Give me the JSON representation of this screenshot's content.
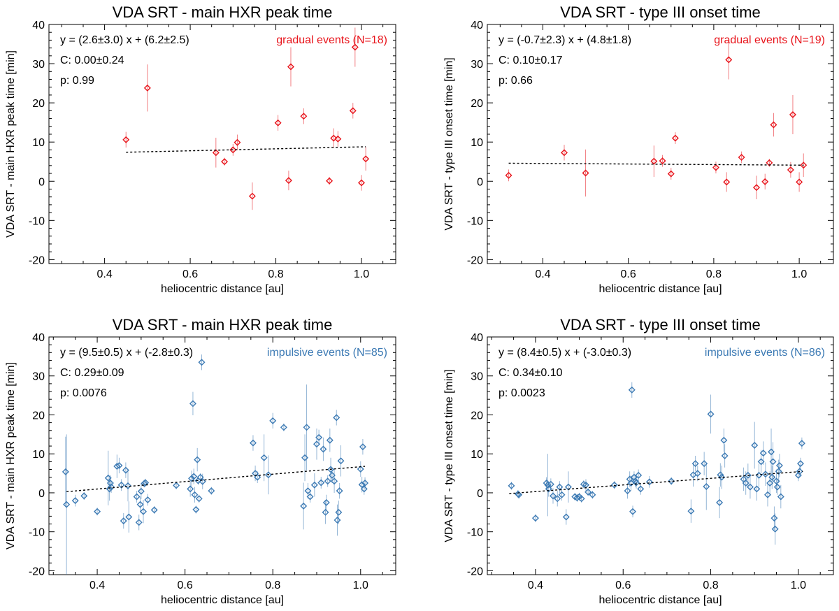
{
  "colors": {
    "gradual": "#e8141b",
    "impulsive": "#3c7ab4",
    "fit": "#000000"
  },
  "chart_data": [
    {
      "type": "scatter",
      "title": "VDA SRT - main HXR peak time",
      "xlabel": "heliocentric distance [au]",
      "ylabel": "VDA SRT - main HXR peak time [min]",
      "xlim": [
        0.27,
        1.08
      ],
      "ylim": [
        -21,
        40
      ],
      "xticks": [
        0.4,
        0.6,
        0.8,
        1.0
      ],
      "yticks": [
        -20,
        -10,
        0,
        10,
        20,
        30,
        40
      ],
      "xtick_labels": [
        "0.4",
        "0.6",
        "0.8",
        "1.0"
      ],
      "ytick_labels": [
        "-20",
        "-10",
        "0",
        "10",
        "20",
        "30",
        "40"
      ],
      "series_color": "gradual",
      "legend": "gradual events (N=18)",
      "fit_text": "y = (2.6±3.0) x + (6.2±2.5)",
      "corr_text": "C: 0.00±0.24",
      "p_text": "p: 0.99",
      "fit": {
        "x": [
          0.45,
          1.01
        ],
        "y": [
          7.4,
          8.8
        ]
      },
      "points": [
        {
          "x": 0.45,
          "y": 10.6,
          "e": 2.0
        },
        {
          "x": 0.5,
          "y": 23.8,
          "e": 6.0
        },
        {
          "x": 0.66,
          "y": 7.3,
          "e": 3.8
        },
        {
          "x": 0.68,
          "y": 5.0,
          "e": 1.0
        },
        {
          "x": 0.7,
          "y": 8.0,
          "e": 1.5
        },
        {
          "x": 0.71,
          "y": 9.9,
          "e": 2.0
        },
        {
          "x": 0.745,
          "y": -3.8,
          "e": 3.5
        },
        {
          "x": 0.805,
          "y": 14.9,
          "e": 2.0
        },
        {
          "x": 0.83,
          "y": 0.2,
          "e": 2.5
        },
        {
          "x": 0.835,
          "y": 29.2,
          "e": 5.0
        },
        {
          "x": 0.865,
          "y": 16.6,
          "e": 2.0
        },
        {
          "x": 0.925,
          "y": 0.1,
          "e": 1.0
        },
        {
          "x": 0.935,
          "y": 11.0,
          "e": 2.5
        },
        {
          "x": 0.945,
          "y": 10.8,
          "e": 2.0
        },
        {
          "x": 0.98,
          "y": 18.0,
          "e": 2.0
        },
        {
          "x": 0.985,
          "y": 34.2,
          "e": 5.0
        },
        {
          "x": 1.0,
          "y": -0.4,
          "e": 2.0
        },
        {
          "x": 1.01,
          "y": 5.7,
          "e": 3.0
        }
      ]
    },
    {
      "type": "scatter",
      "title": "VDA SRT - type III onset time",
      "xlabel": "heliocentric distance [au]",
      "ylabel": "VDA SRT - type III onset time [min]",
      "xlim": [
        0.27,
        1.08
      ],
      "ylim": [
        -21,
        40
      ],
      "xticks": [
        0.4,
        0.6,
        0.8,
        1.0
      ],
      "yticks": [
        -20,
        -10,
        0,
        10,
        20,
        30,
        40
      ],
      "xtick_labels": [
        "0.4",
        "0.6",
        "0.8",
        "1.0"
      ],
      "ytick_labels": [
        "-20",
        "-10",
        "0",
        "10",
        "20",
        "30",
        "40"
      ],
      "series_color": "gradual",
      "legend": "gradual events (N=19)",
      "fit_text": "y = (-0.7±2.3) x + (4.8±1.8)",
      "corr_text": "C: 0.10±0.17",
      "p_text": "p: 0.66",
      "fit": {
        "x": [
          0.32,
          1.01
        ],
        "y": [
          4.6,
          4.1
        ]
      },
      "points": [
        {
          "x": 0.32,
          "y": 1.5,
          "e": 1.5
        },
        {
          "x": 0.45,
          "y": 7.3,
          "e": 2.0
        },
        {
          "x": 0.5,
          "y": 2.1,
          "e": 6.0
        },
        {
          "x": 0.66,
          "y": 5.1,
          "e": 4.0
        },
        {
          "x": 0.68,
          "y": 5.2,
          "e": 1.5
        },
        {
          "x": 0.7,
          "y": 1.9,
          "e": 1.5
        },
        {
          "x": 0.71,
          "y": 11.0,
          "e": 1.5
        },
        {
          "x": 0.805,
          "y": 3.5,
          "e": 1.5
        },
        {
          "x": 0.83,
          "y": -0.2,
          "e": 2.5
        },
        {
          "x": 0.835,
          "y": 31.0,
          "e": 5.0
        },
        {
          "x": 0.865,
          "y": 6.1,
          "e": 1.5
        },
        {
          "x": 0.9,
          "y": -1.6,
          "e": 3.0
        },
        {
          "x": 0.92,
          "y": -0.1,
          "e": 2.0
        },
        {
          "x": 0.93,
          "y": 4.7,
          "e": 1.0
        },
        {
          "x": 0.94,
          "y": 14.4,
          "e": 3.0
        },
        {
          "x": 0.98,
          "y": 2.9,
          "e": 2.0
        },
        {
          "x": 0.985,
          "y": 17.0,
          "e": 5.0
        },
        {
          "x": 1.0,
          "y": -0.2,
          "e": 2.5
        },
        {
          "x": 1.01,
          "y": 4.1,
          "e": 3.0
        }
      ]
    },
    {
      "type": "scatter",
      "title": "VDA SRT - main HXR peak time",
      "xlabel": "heliocentric distance [au]",
      "ylabel": "VDA SRT - main HXR peak time [min]",
      "xlim": [
        0.29,
        1.08
      ],
      "ylim": [
        -21,
        40
      ],
      "xticks": [
        0.4,
        0.6,
        0.8,
        1.0
      ],
      "yticks": [
        -20,
        -10,
        0,
        10,
        20,
        30,
        40
      ],
      "xtick_labels": [
        "0.4",
        "0.6",
        "0.8",
        "1.0"
      ],
      "ytick_labels": [
        "-20",
        "-10",
        "0",
        "10",
        "20",
        "30",
        "40"
      ],
      "series_color": "impulsive",
      "legend": "impulsive events (N=85)",
      "fit_text": "y = (9.5±0.5) x + (-2.8±0.3)",
      "corr_text": "C: 0.29±0.09",
      "p_text": "p: 0.0076",
      "fit": {
        "x": [
          0.33,
          1.01
        ],
        "y": [
          0.3,
          6.8
        ]
      },
      "points": [
        {
          "x": 0.328,
          "y": 5.4,
          "e": 9.0
        },
        {
          "x": 0.33,
          "y": -3.0,
          "e": 18.0
        },
        {
          "x": 0.35,
          "y": -2.0,
          "e": 1.5
        },
        {
          "x": 0.37,
          "y": -0.8,
          "e": 1.0
        },
        {
          "x": 0.4,
          "y": -4.8,
          "e": 1.0
        },
        {
          "x": 0.425,
          "y": 3.8,
          "e": 7.0
        },
        {
          "x": 0.428,
          "y": 1.0,
          "e": 3.0
        },
        {
          "x": 0.43,
          "y": 2.5,
          "e": 2.0
        },
        {
          "x": 0.432,
          "y": 1.5,
          "e": 1.5
        },
        {
          "x": 0.445,
          "y": 6.8,
          "e": 3.0
        },
        {
          "x": 0.45,
          "y": 7.0,
          "e": 2.0
        },
        {
          "x": 0.455,
          "y": 2.0,
          "e": 1.5
        },
        {
          "x": 0.46,
          "y": -7.2,
          "e": 2.0
        },
        {
          "x": 0.465,
          "y": 5.8,
          "e": 2.0
        },
        {
          "x": 0.47,
          "y": 1.8,
          "e": 4.0
        },
        {
          "x": 0.472,
          "y": -6.2,
          "e": 4.0
        },
        {
          "x": 0.49,
          "y": -1.0,
          "e": 1.5
        },
        {
          "x": 0.495,
          "y": -7.6,
          "e": 2.0
        },
        {
          "x": 0.498,
          "y": -3.0,
          "e": 2.0
        },
        {
          "x": 0.5,
          "y": 0.4,
          "e": 2.0
        },
        {
          "x": 0.505,
          "y": -4.8,
          "e": 3.0
        },
        {
          "x": 0.507,
          "y": 2.4,
          "e": 1.0
        },
        {
          "x": 0.51,
          "y": 2.6,
          "e": 1.0
        },
        {
          "x": 0.515,
          "y": -1.8,
          "e": 1.5
        },
        {
          "x": 0.53,
          "y": -4.4,
          "e": 1.0
        },
        {
          "x": 0.58,
          "y": 1.9,
          "e": 1.0
        },
        {
          "x": 0.612,
          "y": 1.0,
          "e": 2.0
        },
        {
          "x": 0.615,
          "y": 3.7,
          "e": 2.0
        },
        {
          "x": 0.618,
          "y": 22.9,
          "e": 3.0
        },
        {
          "x": 0.62,
          "y": 4.2,
          "e": 2.0
        },
        {
          "x": 0.622,
          "y": -0.5,
          "e": 2.0
        },
        {
          "x": 0.625,
          "y": -4.3,
          "e": 1.0
        },
        {
          "x": 0.628,
          "y": 8.5,
          "e": 3.0
        },
        {
          "x": 0.63,
          "y": 3.1,
          "e": 1.0
        },
        {
          "x": 0.632,
          "y": -1.5,
          "e": 1.0
        },
        {
          "x": 0.635,
          "y": 4.0,
          "e": 1.0
        },
        {
          "x": 0.638,
          "y": 33.5,
          "e": 2.0
        },
        {
          "x": 0.64,
          "y": 2.9,
          "e": 2.0
        },
        {
          "x": 0.66,
          "y": 0.5,
          "e": 1.0
        },
        {
          "x": 0.755,
          "y": 12.8,
          "e": 2.0
        },
        {
          "x": 0.76,
          "y": 5.0,
          "e": 2.0
        },
        {
          "x": 0.765,
          "y": 4.0,
          "e": 1.5
        },
        {
          "x": 0.78,
          "y": 9.0,
          "e": 6.0
        },
        {
          "x": 0.79,
          "y": 4.6,
          "e": 5.0
        },
        {
          "x": 0.8,
          "y": 18.5,
          "e": 2.0
        },
        {
          "x": 0.825,
          "y": 16.8,
          "e": 1.0
        },
        {
          "x": 0.87,
          "y": -3.4,
          "e": 6.0
        },
        {
          "x": 0.873,
          "y": 9.0,
          "e": 6.0
        },
        {
          "x": 0.877,
          "y": 16.8,
          "e": 11.0
        },
        {
          "x": 0.88,
          "y": 0.5,
          "e": 2.0
        },
        {
          "x": 0.885,
          "y": -1.0,
          "e": 1.5
        },
        {
          "x": 0.895,
          "y": 2.0,
          "e": 3.0
        },
        {
          "x": 0.9,
          "y": 12.5,
          "e": 4.0
        },
        {
          "x": 0.905,
          "y": 14.2,
          "e": 2.0
        },
        {
          "x": 0.91,
          "y": 2.6,
          "e": 1.5
        },
        {
          "x": 0.915,
          "y": 11.2,
          "e": 3.0
        },
        {
          "x": 0.92,
          "y": -5.0,
          "e": 3.0
        },
        {
          "x": 0.922,
          "y": -2.5,
          "e": 2.0
        },
        {
          "x": 0.925,
          "y": 3.0,
          "e": 1.5
        },
        {
          "x": 0.93,
          "y": 13.5,
          "e": 3.0
        },
        {
          "x": 0.932,
          "y": 6.0,
          "e": 3.0
        },
        {
          "x": 0.935,
          "y": 4.5,
          "e": 2.0
        },
        {
          "x": 0.94,
          "y": 3.0,
          "e": 3.0
        },
        {
          "x": 0.945,
          "y": 19.3,
          "e": 2.0
        },
        {
          "x": 0.947,
          "y": -7.0,
          "e": 4.0
        },
        {
          "x": 0.95,
          "y": -5.0,
          "e": 3.0
        },
        {
          "x": 0.952,
          "y": 0.5,
          "e": 2.0
        },
        {
          "x": 0.955,
          "y": 8.2,
          "e": 4.0
        },
        {
          "x": 1.0,
          "y": 6.1,
          "e": 2.0
        },
        {
          "x": 1.003,
          "y": 2.1,
          "e": 2.0
        },
        {
          "x": 1.005,
          "y": 11.8,
          "e": 2.0
        },
        {
          "x": 1.008,
          "y": 1.0,
          "e": 1.5
        },
        {
          "x": 1.01,
          "y": 2.5,
          "e": 1.5
        }
      ]
    },
    {
      "type": "scatter",
      "title": "VDA SRT - type III onset time",
      "xlabel": "heliocentric distance [au]",
      "ylabel": "VDA SRT - type III onset time [min]",
      "xlim": [
        0.29,
        1.08
      ],
      "ylim": [
        -21,
        40
      ],
      "xticks": [
        0.4,
        0.6,
        0.8,
        1.0
      ],
      "yticks": [
        -20,
        -10,
        0,
        10,
        20,
        30,
        40
      ],
      "xtick_labels": [
        "0.4",
        "0.6",
        "0.8",
        "1.0"
      ],
      "ytick_labels": [
        "-20",
        "-10",
        "0",
        "10",
        "20",
        "30",
        "40"
      ],
      "series_color": "impulsive",
      "legend": "impulsive events (N=86)",
      "fit_text": "y = (8.4±0.5) x + (-3.0±0.3)",
      "corr_text": "C: 0.34±0.10",
      "p_text": "p: 0.0023",
      "fit": {
        "x": [
          0.34,
          1.01
        ],
        "y": [
          -0.2,
          5.5
        ]
      },
      "points": [
        {
          "x": 0.345,
          "y": 1.8,
          "e": 1.0
        },
        {
          "x": 0.36,
          "y": -0.3,
          "e": 1.0
        },
        {
          "x": 0.362,
          "y": -0.5,
          "e": 1.0
        },
        {
          "x": 0.4,
          "y": -6.5,
          "e": 1.0
        },
        {
          "x": 0.425,
          "y": 2.5,
          "e": 1.5
        },
        {
          "x": 0.428,
          "y": 2.0,
          "e": 8.0
        },
        {
          "x": 0.43,
          "y": 1.0,
          "e": 2.0
        },
        {
          "x": 0.435,
          "y": 2.2,
          "e": 1.5
        },
        {
          "x": 0.44,
          "y": -0.8,
          "e": 2.0
        },
        {
          "x": 0.45,
          "y": -1.5,
          "e": 2.0
        },
        {
          "x": 0.455,
          "y": 1.5,
          "e": 1.5
        },
        {
          "x": 0.46,
          "y": -0.5,
          "e": 1.5
        },
        {
          "x": 0.47,
          "y": -6.2,
          "e": 2.0
        },
        {
          "x": 0.475,
          "y": 1.5,
          "e": 4.0
        },
        {
          "x": 0.49,
          "y": -1.0,
          "e": 1.0
        },
        {
          "x": 0.495,
          "y": -1.3,
          "e": 1.0
        },
        {
          "x": 0.5,
          "y": -1.0,
          "e": 1.0
        },
        {
          "x": 0.505,
          "y": -1.5,
          "e": 1.0
        },
        {
          "x": 0.51,
          "y": 2.2,
          "e": 1.0
        },
        {
          "x": 0.515,
          "y": 2.0,
          "e": 1.5
        },
        {
          "x": 0.52,
          "y": 0.2,
          "e": 1.0
        },
        {
          "x": 0.53,
          "y": -0.5,
          "e": 1.0
        },
        {
          "x": 0.58,
          "y": 2.0,
          "e": 1.0
        },
        {
          "x": 0.61,
          "y": 0.5,
          "e": 2.0
        },
        {
          "x": 0.615,
          "y": 3.5,
          "e": 2.0
        },
        {
          "x": 0.618,
          "y": 2.5,
          "e": 2.0
        },
        {
          "x": 0.62,
          "y": 26.4,
          "e": 2.0
        },
        {
          "x": 0.622,
          "y": -4.8,
          "e": 1.5
        },
        {
          "x": 0.625,
          "y": 4.0,
          "e": 1.5
        },
        {
          "x": 0.628,
          "y": 3.0,
          "e": 1.5
        },
        {
          "x": 0.63,
          "y": 2.6,
          "e": 1.5
        },
        {
          "x": 0.635,
          "y": 4.5,
          "e": 1.5
        },
        {
          "x": 0.64,
          "y": 1.0,
          "e": 1.5
        },
        {
          "x": 0.66,
          "y": 2.8,
          "e": 1.5
        },
        {
          "x": 0.71,
          "y": 3.0,
          "e": 1.0
        },
        {
          "x": 0.755,
          "y": -4.7,
          "e": 3.0
        },
        {
          "x": 0.76,
          "y": 4.6,
          "e": 3.0
        },
        {
          "x": 0.765,
          "y": 7.5,
          "e": 2.0
        },
        {
          "x": 0.77,
          "y": 5.0,
          "e": 2.0
        },
        {
          "x": 0.785,
          "y": 7.5,
          "e": 3.0
        },
        {
          "x": 0.79,
          "y": 1.6,
          "e": 6.0
        },
        {
          "x": 0.8,
          "y": 20.2,
          "e": 5.0
        },
        {
          "x": 0.82,
          "y": -2.5,
          "e": 4.0
        },
        {
          "x": 0.822,
          "y": 4.6,
          "e": 3.0
        },
        {
          "x": 0.825,
          "y": 4.0,
          "e": 3.0
        },
        {
          "x": 0.83,
          "y": 13.5,
          "e": 3.0
        },
        {
          "x": 0.832,
          "y": 9.5,
          "e": 3.0
        },
        {
          "x": 0.875,
          "y": 3.5,
          "e": 3.0
        },
        {
          "x": 0.88,
          "y": 2.5,
          "e": 3.0
        },
        {
          "x": 0.885,
          "y": 4.5,
          "e": 3.0
        },
        {
          "x": 0.89,
          "y": 1.5,
          "e": 3.0
        },
        {
          "x": 0.9,
          "y": 12.2,
          "e": 6.0
        },
        {
          "x": 0.905,
          "y": 1.0,
          "e": 3.0
        },
        {
          "x": 0.91,
          "y": 4.5,
          "e": 3.0
        },
        {
          "x": 0.915,
          "y": 8.0,
          "e": 3.0
        },
        {
          "x": 0.92,
          "y": 10.2,
          "e": 3.0
        },
        {
          "x": 0.925,
          "y": 4.8,
          "e": 3.0
        },
        {
          "x": 0.93,
          "y": -0.5,
          "e": 3.0
        },
        {
          "x": 0.935,
          "y": 2.5,
          "e": 3.0
        },
        {
          "x": 0.938,
          "y": 10.5,
          "e": 6.0
        },
        {
          "x": 0.94,
          "y": 4.0,
          "e": 3.0
        },
        {
          "x": 0.942,
          "y": 8.0,
          "e": 5.0
        },
        {
          "x": 0.945,
          "y": -6.5,
          "e": 3.0
        },
        {
          "x": 0.947,
          "y": -9.3,
          "e": 4.0
        },
        {
          "x": 0.95,
          "y": 3.0,
          "e": 3.0
        },
        {
          "x": 0.952,
          "y": 1.5,
          "e": 2.0
        },
        {
          "x": 0.955,
          "y": 5.5,
          "e": 3.0
        },
        {
          "x": 0.957,
          "y": 7.0,
          "e": 3.0
        },
        {
          "x": 0.96,
          "y": -1.0,
          "e": 3.0
        },
        {
          "x": 1.0,
          "y": 4.5,
          "e": 1.5
        },
        {
          "x": 1.003,
          "y": 5.5,
          "e": 1.5
        },
        {
          "x": 1.005,
          "y": 7.5,
          "e": 1.5
        },
        {
          "x": 1.008,
          "y": 12.7,
          "e": 1.5
        }
      ]
    }
  ]
}
